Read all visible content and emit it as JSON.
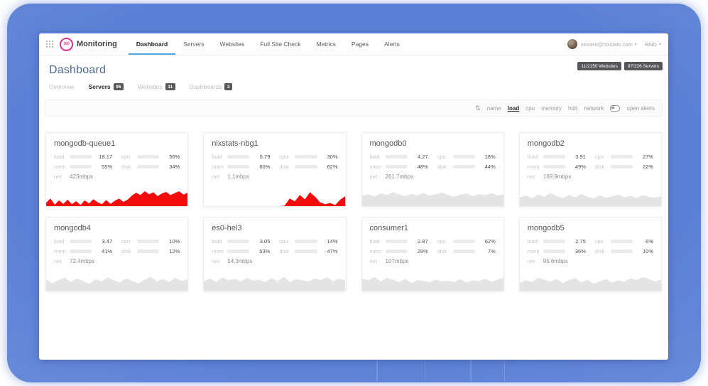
{
  "frame": {
    "accent_blue": "#5c80d5"
  },
  "navbar": {
    "brand": {
      "logo_text": "360",
      "name": "Monitoring"
    },
    "items": [
      {
        "label": "Dashboard",
        "active": true
      },
      {
        "label": "Servers",
        "active": false
      },
      {
        "label": "Websites",
        "active": false
      },
      {
        "label": "Full Site Check",
        "active": false
      },
      {
        "label": "Metrics",
        "active": false
      },
      {
        "label": "Pages",
        "active": false
      },
      {
        "label": "Alerts",
        "active": false
      }
    ],
    "user": {
      "email": "vincent@nixstats.com",
      "caret": "▾",
      "lang": "ENG"
    }
  },
  "header": {
    "title": "Dashboard",
    "badges": [
      {
        "label": "11/2150 Websites"
      },
      {
        "label": "97/226 Servers"
      }
    ]
  },
  "tabs": [
    {
      "label": "Overview",
      "count": "",
      "active": false
    },
    {
      "label": "Servers",
      "count": "96",
      "active": true
    },
    {
      "label": "Websites",
      "count": "11",
      "active": false
    },
    {
      "label": "Dashboards",
      "count": "3",
      "active": false
    }
  ],
  "sortbar": {
    "sort_icon_glyph": "⇅",
    "options": [
      {
        "label": "name",
        "active": false
      },
      {
        "label": "load",
        "active": true
      },
      {
        "label": "cpu",
        "active": false
      },
      {
        "label": "memory",
        "active": false
      },
      {
        "label": "hdd",
        "active": false
      },
      {
        "label": "network",
        "active": false
      }
    ],
    "toggle_label": "open alerts"
  },
  "card_labels": {
    "load": "load",
    "cpu": "cpu",
    "mem": "mem",
    "disk": "disk",
    "net": "net"
  },
  "colors": {
    "red": "#d9534f",
    "orange": "#f0a42e",
    "green": "#43b148",
    "spark_red": "#f20c0c",
    "spark_gray": "#e4e4e4",
    "track": "#eaeaea"
  },
  "cards": [
    {
      "name": "mongodb-queue1",
      "load": {
        "value": "18.17",
        "pct": 100,
        "color": "red"
      },
      "cpu": {
        "value": "56%",
        "pct": 56,
        "color": "orange"
      },
      "mem": {
        "value": "55%",
        "pct": 55,
        "color": "green"
      },
      "disk": {
        "value": "34%",
        "pct": 34,
        "color": "green"
      },
      "net": "423mbps",
      "spark": {
        "color": "spark_red",
        "points": [
          18,
          40,
          8,
          30,
          12,
          34,
          10,
          26,
          6,
          30,
          14,
          36,
          20,
          10,
          32,
          12,
          28,
          40,
          22,
          34,
          55,
          70,
          58,
          78,
          62,
          72,
          52,
          66,
          74,
          58,
          68,
          78,
          60,
          70
        ]
      }
    },
    {
      "name": "nixstats-nbg1",
      "load": {
        "value": "5.79",
        "pct": 100,
        "color": "red"
      },
      "cpu": {
        "value": "30%",
        "pct": 30,
        "color": "green"
      },
      "mem": {
        "value": "60%",
        "pct": 60,
        "color": "green"
      },
      "disk": {
        "value": "62%",
        "pct": 62,
        "color": "green"
      },
      "net": "1.1mbps",
      "spark": {
        "color": "spark_red",
        "points": [
          0,
          0,
          0,
          0,
          0,
          0,
          0,
          0,
          0,
          0,
          0,
          0,
          0,
          0,
          0,
          0,
          3,
          40,
          25,
          58,
          35,
          72,
          50,
          20,
          10,
          16,
          6,
          34,
          52
        ]
      }
    },
    {
      "name": "mongodb0",
      "load": {
        "value": "4.27",
        "pct": 26,
        "color": "green"
      },
      "cpu": {
        "value": "18%",
        "pct": 18,
        "color": "green"
      },
      "mem": {
        "value": "48%",
        "pct": 48,
        "color": "green"
      },
      "disk": {
        "value": "44%",
        "pct": 44,
        "color": "green"
      },
      "net": "261.7mbps",
      "spark": {
        "color": "spark_gray",
        "points": [
          55,
          62,
          50,
          66,
          58,
          72,
          60,
          52,
          64,
          56,
          68,
          54,
          62,
          70,
          58,
          50,
          60,
          66,
          52,
          62,
          58,
          68,
          56,
          60
        ]
      }
    },
    {
      "name": "mongodb2",
      "load": {
        "value": "3.91",
        "pct": 23,
        "color": "green"
      },
      "cpu": {
        "value": "27%",
        "pct": 27,
        "color": "green"
      },
      "mem": {
        "value": "49%",
        "pct": 49,
        "color": "green"
      },
      "disk": {
        "value": "22%",
        "pct": 22,
        "color": "green"
      },
      "net": "169.9mbps",
      "spark": {
        "color": "spark_gray",
        "points": [
          45,
          55,
          40,
          60,
          48,
          70,
          52,
          42,
          58,
          46,
          64,
          50,
          40,
          56,
          44,
          52,
          60,
          46,
          54,
          42,
          58,
          48,
          44,
          50
        ]
      }
    },
    {
      "name": "mongodb4",
      "load": {
        "value": "3.47",
        "pct": 10,
        "color": "green"
      },
      "cpu": {
        "value": "10%",
        "pct": 10,
        "color": "green"
      },
      "mem": {
        "value": "41%",
        "pct": 41,
        "color": "green"
      },
      "disk": {
        "value": "12%",
        "pct": 12,
        "color": "green"
      },
      "net": "72.4mbps",
      "spark": {
        "color": "spark_gray",
        "points": [
          60,
          40,
          55,
          70,
          45,
          65,
          50,
          35,
          60,
          48,
          70,
          55,
          42,
          65,
          50,
          38,
          58,
          72,
          48,
          62,
          45,
          68,
          52,
          58
        ]
      }
    },
    {
      "name": "es0-hel3",
      "load": {
        "value": "3.05",
        "pct": 20,
        "color": "green"
      },
      "cpu": {
        "value": "14%",
        "pct": 14,
        "color": "green"
      },
      "mem": {
        "value": "53%",
        "pct": 53,
        "color": "green"
      },
      "disk": {
        "value": "47%",
        "pct": 47,
        "color": "green"
      },
      "net": "54.3mbps",
      "spark": {
        "color": "spark_gray",
        "points": [
          50,
          65,
          45,
          70,
          55,
          62,
          48,
          68,
          52,
          58,
          44,
          66,
          50,
          72,
          46,
          60,
          54,
          48,
          64,
          56,
          70,
          50,
          62,
          55
        ]
      }
    },
    {
      "name": "consumer1",
      "load": {
        "value": "2.87",
        "pct": 70,
        "color": "orange"
      },
      "cpu": {
        "value": "62%",
        "pct": 62,
        "color": "orange"
      },
      "mem": {
        "value": "29%",
        "pct": 29,
        "color": "green"
      },
      "disk": {
        "value": "7%",
        "pct": 7,
        "color": "green"
      },
      "net": "107mbps",
      "spark": {
        "color": "spark_gray",
        "points": [
          65,
          55,
          72,
          48,
          68,
          58,
          45,
          62,
          40,
          56,
          50,
          44,
          58,
          48,
          52,
          46,
          60,
          42,
          55,
          50,
          64,
          46,
          58,
          68
        ]
      }
    },
    {
      "name": "mongodb5",
      "load": {
        "value": "2.75",
        "pct": 8,
        "color": "green"
      },
      "cpu": {
        "value": "6%",
        "pct": 6,
        "color": "green"
      },
      "mem": {
        "value": "36%",
        "pct": 36,
        "color": "green"
      },
      "disk": {
        "value": "10%",
        "pct": 10,
        "color": "green"
      },
      "net": "95.6mbps",
      "spark": {
        "color": "spark_gray",
        "points": [
          40,
          55,
          45,
          68,
          58,
          48,
          62,
          40,
          56,
          66,
          44,
          58,
          35,
          50,
          60,
          42,
          54,
          46,
          66,
          56,
          70,
          62,
          48,
          58
        ]
      }
    }
  ]
}
